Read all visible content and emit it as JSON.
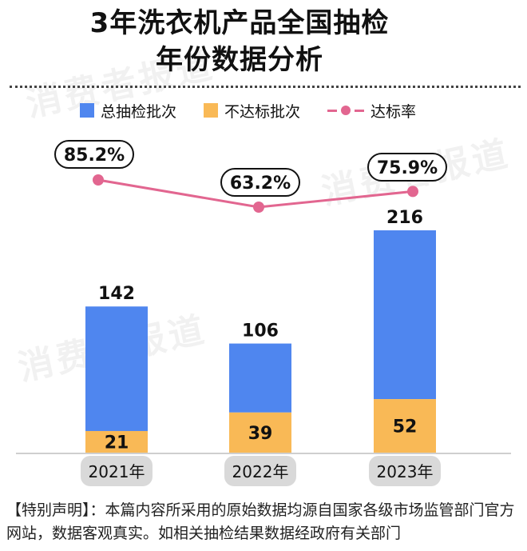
{
  "title": {
    "line1": "3年洗衣机产品全国抽检",
    "line2": "年份数据分析"
  },
  "watermark": "消费者报道",
  "legend": {
    "total": "总抽检批次",
    "fail": "不达标批次",
    "rate": "达标率"
  },
  "colors": {
    "total": "#4f86ef",
    "fail": "#f9b956",
    "rate": "#e26690",
    "year_badge": "#d9d9d9"
  },
  "chart_data": {
    "type": "bar",
    "categories": [
      "2021年",
      "2022年",
      "2023年"
    ],
    "series": [
      {
        "name": "总抽检批次",
        "values": [
          142,
          106,
          216
        ]
      },
      {
        "name": "不达标批次",
        "values": [
          21,
          39,
          52
        ]
      },
      {
        "name": "达标率",
        "values": [
          85.2,
          63.2,
          75.9
        ],
        "type": "line"
      }
    ],
    "value_labels": {
      "total": [
        "142",
        "106",
        "216"
      ],
      "fail": [
        "21",
        "39",
        "52"
      ],
      "rate": [
        "85.2%",
        "63.2%",
        "75.9%"
      ]
    },
    "ylim": [
      0,
      216
    ],
    "legend_position": "top"
  },
  "footer": "【特别声明】：本篇内容所采用的原始数据均源自国家各级市场监管部门官方网站，数据客观真实。如相关抽检结果数据经政府有关部门"
}
